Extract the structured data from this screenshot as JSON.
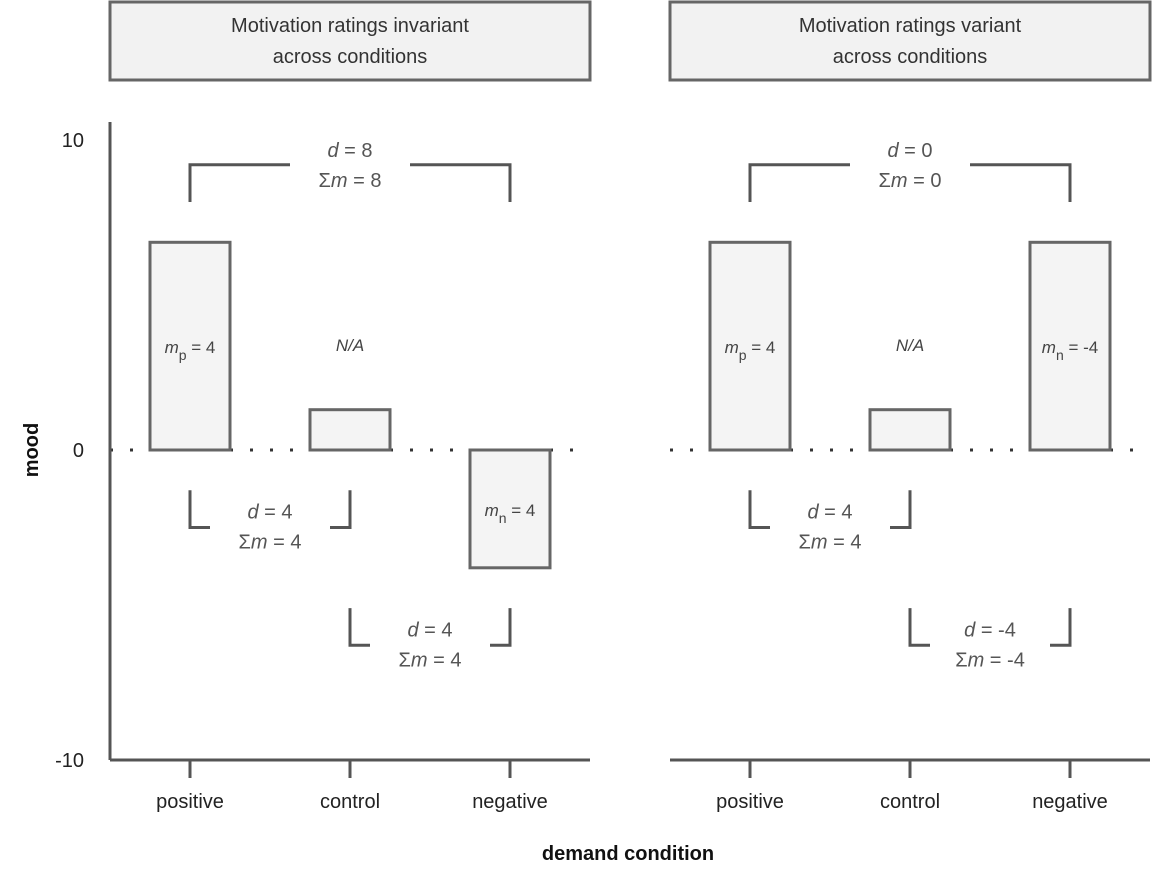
{
  "chart_data": {
    "type": "bar",
    "xlabel": "demand condition",
    "ylabel": "mood",
    "ylim": [
      -10,
      10
    ],
    "yticks": [
      "-10",
      "0",
      "10"
    ],
    "categories": [
      "positive",
      "control",
      "negative"
    ],
    "colors": {
      "bar_fill": "#f4f4f4",
      "bar_stroke": "#666666",
      "axis": "#555555",
      "strip_fill": "#f2f2f2",
      "text": "#555555"
    },
    "panels": [
      {
        "strip_lines": [
          "Motivation ratings invariant",
          "across conditions"
        ],
        "values": [
          6.7,
          1.3,
          -3.8
        ],
        "bar_labels": [
          {
            "m": "m",
            "sub": "p",
            "rest": " = 4"
          },
          {
            "text": "N/A"
          },
          {
            "m": "m",
            "sub": "n",
            "rest": " = 4"
          }
        ],
        "brackets": [
          {
            "from": "positive",
            "to": "negative",
            "arms": "down",
            "bar_y": 9.2,
            "arm_y": 8.0,
            "d_label": "= 8",
            "sum_label": "Σm = 8"
          },
          {
            "from": "positive",
            "to": "control",
            "arms": "up",
            "bar_y": -2.5,
            "arm_y": -1.3,
            "d_label": "= 4",
            "sum_label": "Σm = 4"
          },
          {
            "from": "control",
            "to": "negative",
            "arms": "up",
            "bar_y": -6.3,
            "arm_y": -5.1,
            "d_label": "= 4",
            "sum_label": "Σm = 4"
          }
        ]
      },
      {
        "strip_lines": [
          "Motivation ratings variant",
          "across conditions"
        ],
        "values": [
          6.7,
          1.3,
          6.7
        ],
        "bar_labels": [
          {
            "m": "m",
            "sub": "p",
            "rest": " = 4"
          },
          {
            "text": "N/A"
          },
          {
            "m": "m",
            "sub": "n",
            "rest": " = -4"
          }
        ],
        "brackets": [
          {
            "from": "positive",
            "to": "negative",
            "arms": "down",
            "bar_y": 9.2,
            "arm_y": 8.0,
            "d_label": "= 0",
            "sum_label": "Σm = 0"
          },
          {
            "from": "positive",
            "to": "control",
            "arms": "up",
            "bar_y": -2.5,
            "arm_y": -1.3,
            "d_label": "= 4",
            "sum_label": "Σm = 4"
          },
          {
            "from": "control",
            "to": "negative",
            "arms": "up",
            "bar_y": -6.3,
            "arm_y": -5.1,
            "d_label": "= -4",
            "sum_label": "Σm = -4"
          }
        ]
      }
    ]
  }
}
